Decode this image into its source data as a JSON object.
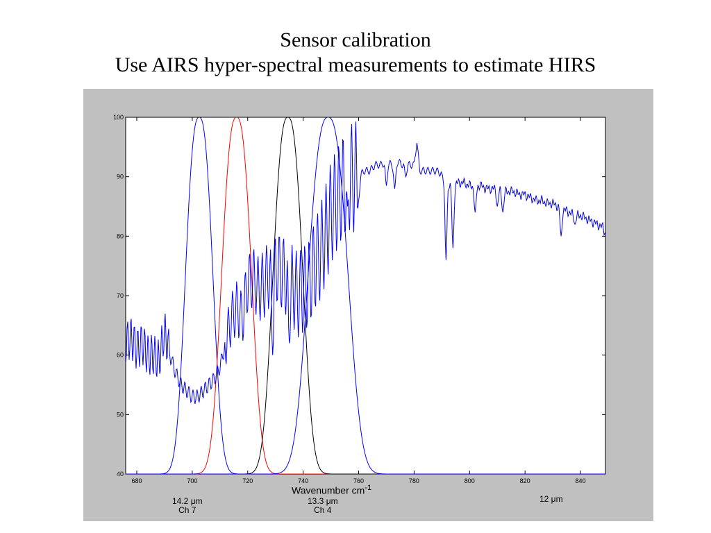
{
  "slide": {
    "title_line1": "Sensor calibration",
    "title_line2": "Use AIRS hyper-spectral measurements to estimate HIRS"
  },
  "chart_data": {
    "type": "line",
    "xlabel": "Wavenumber cm",
    "xlabel_sup": "-1",
    "xlim": [
      676,
      849
    ],
    "ylim": [
      40,
      100
    ],
    "x_ticks": [
      680,
      700,
      720,
      740,
      760,
      780,
      800,
      820,
      840
    ],
    "y_ticks": [
      40,
      50,
      60,
      70,
      80,
      90,
      100
    ],
    "grid": false,
    "annotations": [
      {
        "line1": "14.2 μm",
        "line2": "Ch 7"
      },
      {
        "line1": "13.3 μm",
        "line2": "Ch 4"
      },
      {
        "line1": "12 μm",
        "line2": ""
      }
    ],
    "series": [
      {
        "color": "#0000ff",
        "kind": "srf",
        "center": 702.5,
        "fwhm": 11,
        "peak": 100
      },
      {
        "color": "#ff0000",
        "kind": "srf",
        "center": 716,
        "fwhm": 12,
        "peak": 100
      },
      {
        "color": "#000000",
        "kind": "srf",
        "center": 734.5,
        "fwhm": 12,
        "peak": 100
      },
      {
        "color": "#0000ff",
        "kind": "srf",
        "center": 749,
        "fwhm": 16,
        "peak": 100
      },
      {
        "color": "#0000ff",
        "kind": "spectrum",
        "points": [
          [
            676,
            62
          ],
          [
            678,
            63
          ],
          [
            680,
            61
          ],
          [
            682,
            62
          ],
          [
            684,
            60
          ],
          [
            686,
            60
          ],
          [
            688,
            59
          ],
          [
            690,
            64
          ],
          [
            692,
            60
          ],
          [
            694,
            57
          ],
          [
            696,
            55
          ],
          [
            698,
            54
          ],
          [
            700,
            53
          ],
          [
            702,
            53
          ],
          [
            704,
            54
          ],
          [
            706,
            55
          ],
          [
            708,
            56
          ],
          [
            710,
            58
          ],
          [
            712,
            62
          ],
          [
            714,
            66
          ],
          [
            716,
            68
          ],
          [
            718,
            66
          ],
          [
            720,
            72
          ],
          [
            722,
            73
          ],
          [
            724,
            71
          ],
          [
            726,
            72
          ],
          [
            728,
            74
          ],
          [
            730,
            75
          ],
          [
            732,
            74
          ],
          [
            734,
            73
          ],
          [
            736,
            72
          ],
          [
            738,
            70
          ],
          [
            740,
            71
          ],
          [
            742,
            72
          ],
          [
            744,
            75
          ],
          [
            746,
            77
          ],
          [
            748,
            80
          ],
          [
            750,
            84
          ],
          [
            752,
            86
          ],
          [
            754,
            88
          ],
          [
            756,
            89
          ],
          [
            758,
            90
          ],
          [
            760,
            90
          ],
          [
            762,
            91
          ],
          [
            764,
            91
          ],
          [
            766,
            92
          ],
          [
            768,
            92
          ],
          [
            770,
            92.5
          ],
          [
            772,
            92
          ],
          [
            774,
            92.5
          ],
          [
            776,
            92
          ],
          [
            778,
            92
          ],
          [
            780,
            92
          ],
          [
            781,
            96
          ],
          [
            782,
            91
          ],
          [
            784,
            91
          ],
          [
            786,
            91
          ],
          [
            788,
            91
          ],
          [
            790,
            90.5
          ],
          [
            792,
            89
          ],
          [
            794,
            88.5
          ],
          [
            796,
            89
          ],
          [
            798,
            89
          ],
          [
            800,
            88.5
          ],
          [
            802,
            88.5
          ],
          [
            804,
            88.5
          ],
          [
            806,
            88
          ],
          [
            808,
            88
          ],
          [
            810,
            88
          ],
          [
            812,
            87.5
          ],
          [
            814,
            87.5
          ],
          [
            816,
            87.5
          ],
          [
            818,
            87
          ],
          [
            820,
            87
          ],
          [
            822,
            86.5
          ],
          [
            824,
            86
          ],
          [
            826,
            86
          ],
          [
            828,
            85.5
          ],
          [
            830,
            85.5
          ],
          [
            832,
            85
          ],
          [
            834,
            84.5
          ],
          [
            836,
            84
          ],
          [
            838,
            83.5
          ],
          [
            840,
            83.5
          ],
          [
            842,
            83
          ],
          [
            844,
            82.5
          ],
          [
            846,
            82
          ],
          [
            848,
            81.5
          ],
          [
            849,
            80.5
          ]
        ],
        "dips": [
          [
            791.5,
            76
          ],
          [
            794,
            78
          ],
          [
            802,
            84
          ],
          [
            810,
            85
          ],
          [
            812,
            84
          ],
          [
            833,
            80
          ],
          [
            838,
            82
          ],
          [
            756,
            85
          ],
          [
            760,
            86
          ],
          [
            770,
            88.5
          ],
          [
            773,
            88
          ],
          [
            777,
            90
          ],
          [
            735,
            62
          ],
          [
            729,
            60
          ]
        ]
      }
    ]
  }
}
